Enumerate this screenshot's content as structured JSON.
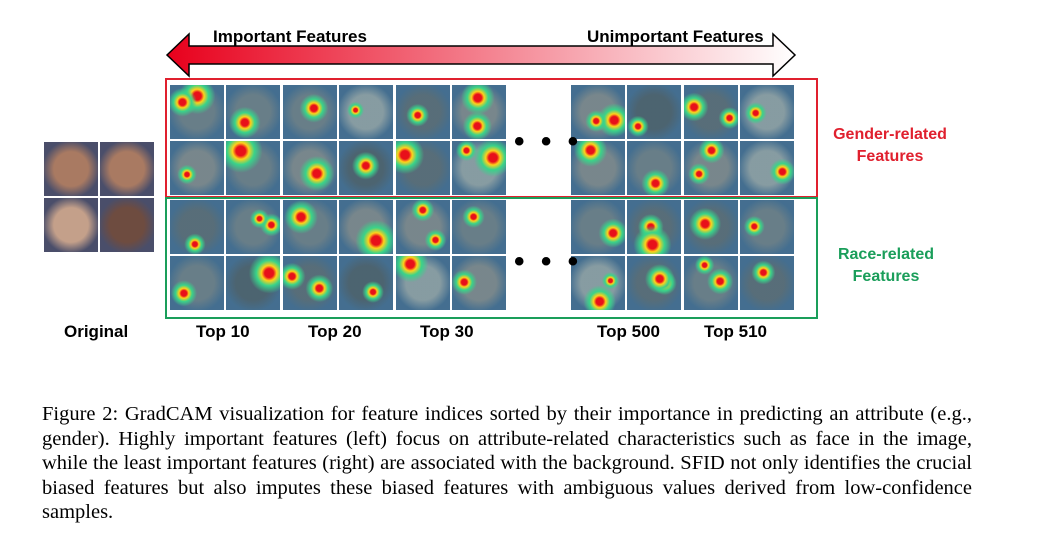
{
  "arrow": {
    "left_label": "Important Features",
    "right_label": "Unimportant Features",
    "colors": {
      "start": "#e8001c",
      "end": "#ffffff"
    }
  },
  "groups": {
    "original": "Original",
    "columns": [
      "Top 10",
      "Top 20",
      "Top 30",
      "Top 500",
      "Top 510"
    ]
  },
  "rows": {
    "gender": {
      "line1": "Gender-related",
      "line2": "Features",
      "color": "#e0202e"
    },
    "race": {
      "line1": "Race-related",
      "line2": "Features",
      "color": "#1a9e5a"
    }
  },
  "ellipsis": "• • •",
  "caption": "Figure 2: GradCAM visualization for feature indices sorted by their importance in predicting an attribute (e.g., gender). Highly important features (left) focus on attribute-related characteristics such as face in the image, while the least important features (right) are associated with the background. SFID not only identifies the crucial biased features but also imputes these biased features with ambiguous values derived from low-confidence samples."
}
